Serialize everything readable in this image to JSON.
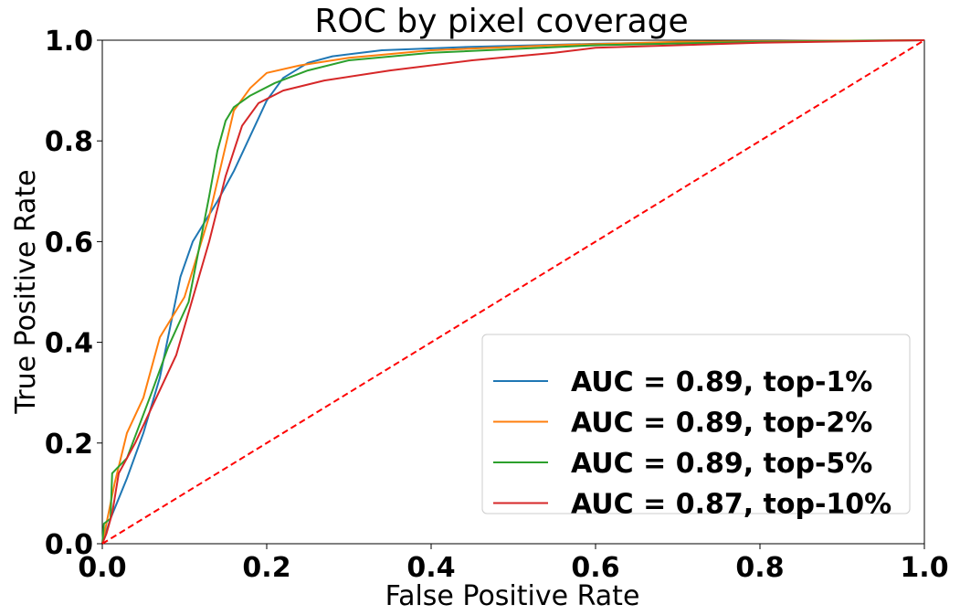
{
  "chart_data": {
    "type": "line",
    "title": "ROC by pixel coverage",
    "xlabel": "False Positive Rate",
    "ylabel": "True Positive Rate",
    "xlim": [
      0.0,
      1.0
    ],
    "ylim": [
      0.0,
      1.0
    ],
    "xticks": [
      "0.0",
      "0.2",
      "0.4",
      "0.6",
      "0.8",
      "1.0"
    ],
    "yticks": [
      "0.0",
      "0.2",
      "0.4",
      "0.6",
      "0.8",
      "1.0"
    ],
    "grid": false,
    "legend_position": "lower-right",
    "series": [
      {
        "name": "AUC = 0.89, top-1%",
        "color": "#1f77b4",
        "points": [
          [
            0.0,
            0.0
          ],
          [
            0.01,
            0.05
          ],
          [
            0.03,
            0.13
          ],
          [
            0.05,
            0.22
          ],
          [
            0.07,
            0.33
          ],
          [
            0.095,
            0.53
          ],
          [
            0.11,
            0.6
          ],
          [
            0.14,
            0.68
          ],
          [
            0.16,
            0.74
          ],
          [
            0.18,
            0.81
          ],
          [
            0.2,
            0.88
          ],
          [
            0.22,
            0.925
          ],
          [
            0.25,
            0.955
          ],
          [
            0.28,
            0.968
          ],
          [
            0.34,
            0.98
          ],
          [
            0.45,
            0.987
          ],
          [
            0.6,
            0.993
          ],
          [
            0.8,
            0.998
          ],
          [
            1.0,
            1.0
          ]
        ]
      },
      {
        "name": "AUC = 0.89, top-2%",
        "color": "#ff7f0e",
        "points": [
          [
            0.0,
            0.0
          ],
          [
            0.005,
            0.04
          ],
          [
            0.015,
            0.12
          ],
          [
            0.03,
            0.22
          ],
          [
            0.05,
            0.29
          ],
          [
            0.07,
            0.41
          ],
          [
            0.1,
            0.49
          ],
          [
            0.13,
            0.65
          ],
          [
            0.15,
            0.79
          ],
          [
            0.16,
            0.86
          ],
          [
            0.18,
            0.905
          ],
          [
            0.2,
            0.935
          ],
          [
            0.24,
            0.95
          ],
          [
            0.3,
            0.965
          ],
          [
            0.4,
            0.98
          ],
          [
            0.55,
            0.99
          ],
          [
            0.7,
            0.997
          ],
          [
            1.0,
            1.0
          ]
        ]
      },
      {
        "name": "AUC = 0.89, top-5%",
        "color": "#2ca02c",
        "points": [
          [
            0.0,
            0.0
          ],
          [
            0.002,
            0.04
          ],
          [
            0.01,
            0.05
          ],
          [
            0.012,
            0.14
          ],
          [
            0.03,
            0.17
          ],
          [
            0.06,
            0.3
          ],
          [
            0.08,
            0.39
          ],
          [
            0.105,
            0.48
          ],
          [
            0.13,
            0.69
          ],
          [
            0.14,
            0.78
          ],
          [
            0.15,
            0.84
          ],
          [
            0.16,
            0.867
          ],
          [
            0.18,
            0.89
          ],
          [
            0.21,
            0.915
          ],
          [
            0.25,
            0.94
          ],
          [
            0.3,
            0.96
          ],
          [
            0.4,
            0.975
          ],
          [
            0.6,
            0.99
          ],
          [
            0.8,
            0.997
          ],
          [
            1.0,
            1.0
          ]
        ]
      },
      {
        "name": "AUC = 0.87, top-10%",
        "color": "#d62728",
        "points": [
          [
            0.0,
            0.0
          ],
          [
            0.005,
            0.02
          ],
          [
            0.012,
            0.06
          ],
          [
            0.02,
            0.14
          ],
          [
            0.04,
            0.2
          ],
          [
            0.06,
            0.27
          ],
          [
            0.09,
            0.375
          ],
          [
            0.13,
            0.6
          ],
          [
            0.15,
            0.73
          ],
          [
            0.17,
            0.83
          ],
          [
            0.19,
            0.875
          ],
          [
            0.22,
            0.9
          ],
          [
            0.27,
            0.92
          ],
          [
            0.35,
            0.94
          ],
          [
            0.45,
            0.96
          ],
          [
            0.55,
            0.975
          ],
          [
            0.6,
            0.985
          ],
          [
            0.7,
            0.99
          ],
          [
            0.8,
            0.995
          ],
          [
            1.0,
            1.0
          ]
        ]
      },
      {
        "name": "",
        "color": "#ff0000",
        "dashed": true,
        "points": [
          [
            0.0,
            0.0
          ],
          [
            1.0,
            1.0
          ]
        ]
      }
    ]
  }
}
